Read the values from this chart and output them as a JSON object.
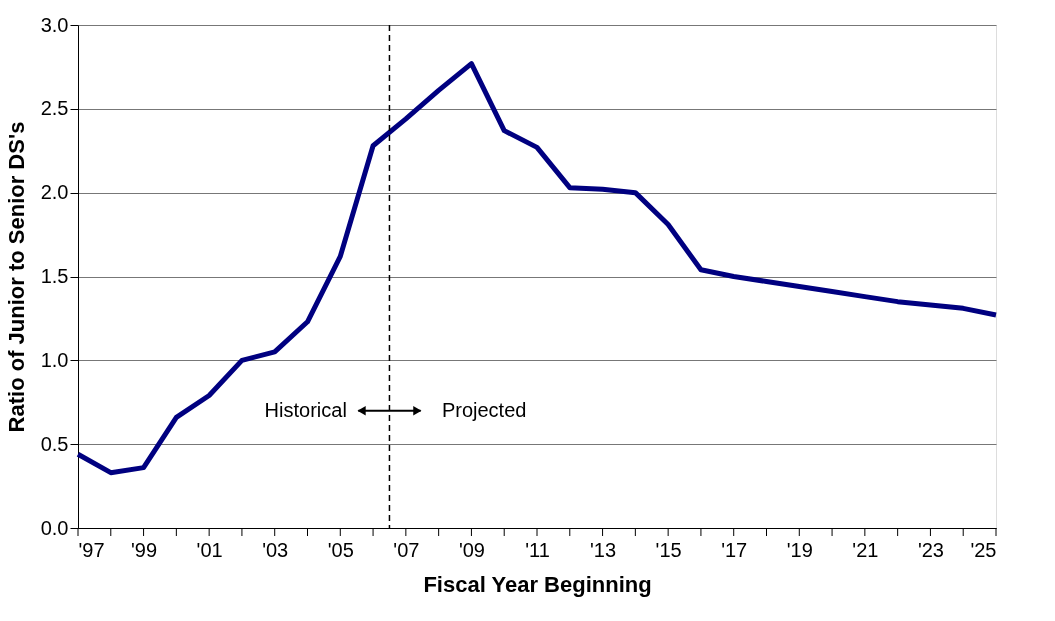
{
  "chart_data": {
    "type": "line",
    "xlabel": "Fiscal Year Beginning",
    "ylabel": "Ratio of Junior to Senior DS's",
    "x": [
      1997,
      1998,
      1999,
      2000,
      2001,
      2002,
      2003,
      2004,
      2005,
      2006,
      2007,
      2008,
      2009,
      2010,
      2011,
      2012,
      2013,
      2014,
      2015,
      2016,
      2017,
      2018,
      2019,
      2020,
      2021,
      2022,
      2023,
      2024,
      2025
    ],
    "series": [
      {
        "color": "#000080",
        "values": [
          0.44,
          0.33,
          0.36,
          0.66,
          0.79,
          1.0,
          1.05,
          1.23,
          1.62,
          2.28,
          2.44,
          2.61,
          2.77,
          2.37,
          2.27,
          2.03,
          2.02,
          2.0,
          1.81,
          1.54,
          1.5,
          1.47,
          1.44,
          1.41,
          1.38,
          1.35,
          1.33,
          1.31,
          1.27
        ]
      }
    ],
    "xlim": [
      1997,
      2025
    ],
    "xticks": [
      {
        "value": 1997,
        "label": "'97"
      },
      {
        "value": 1998,
        "label": null
      },
      {
        "value": 1999,
        "label": "'99"
      },
      {
        "value": 2000,
        "label": null
      },
      {
        "value": 2001,
        "label": "'01"
      },
      {
        "value": 2002,
        "label": null
      },
      {
        "value": 2003,
        "label": "'03"
      },
      {
        "value": 2004,
        "label": null
      },
      {
        "value": 2005,
        "label": "'05"
      },
      {
        "value": 2006,
        "label": null
      },
      {
        "value": 2007,
        "label": "'07"
      },
      {
        "value": 2008,
        "label": null
      },
      {
        "value": 2009,
        "label": "'09"
      },
      {
        "value": 2010,
        "label": null
      },
      {
        "value": 2011,
        "label": "'11"
      },
      {
        "value": 2012,
        "label": null
      },
      {
        "value": 2013,
        "label": "'13"
      },
      {
        "value": 2014,
        "label": null
      },
      {
        "value": 2015,
        "label": "'15"
      },
      {
        "value": 2016,
        "label": null
      },
      {
        "value": 2017,
        "label": "'17"
      },
      {
        "value": 2018,
        "label": null
      },
      {
        "value": 2019,
        "label": "'19"
      },
      {
        "value": 2020,
        "label": null
      },
      {
        "value": 2021,
        "label": "'21"
      },
      {
        "value": 2022,
        "label": null
      },
      {
        "value": 2023,
        "label": "'23"
      },
      {
        "value": 2024,
        "label": null
      },
      {
        "value": 2025,
        "label": "'25"
      }
    ],
    "ylim": [
      0,
      3.0
    ],
    "yticks": [
      {
        "value": 0,
        "label": "0.0"
      },
      {
        "value": 0.5,
        "label": "0.5"
      },
      {
        "value": 1,
        "label": "1.0"
      },
      {
        "value": 1.5,
        "label": "1.5"
      },
      {
        "value": 2,
        "label": "2.0"
      },
      {
        "value": 2.5,
        "label": "2.5"
      },
      {
        "value": 3,
        "label": "3.0"
      }
    ],
    "grid": "y",
    "marker": "none",
    "line_style": "solid",
    "ref_lines": [
      {
        "axis": "x",
        "value": 2006.5,
        "label": null,
        "color": "#000000",
        "line_style": "dashed"
      }
    ],
    "annotations": [
      "Historical",
      "Projected"
    ]
  }
}
